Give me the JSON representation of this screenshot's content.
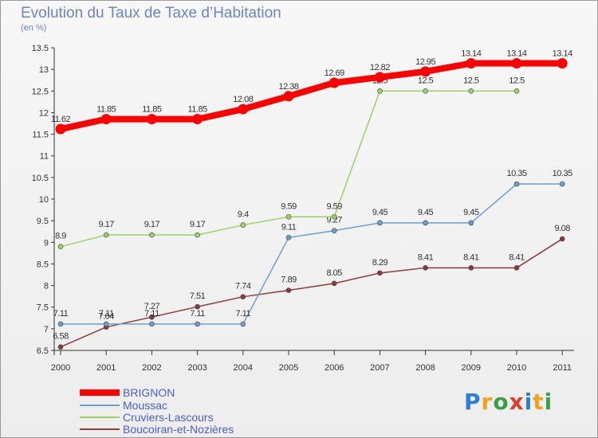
{
  "header": {
    "title": "Evolution du Taux de Taxe d’Habitation",
    "unit": "(en %)"
  },
  "logo": {
    "letters": [
      "P",
      "r",
      "o",
      "x",
      "i",
      "t",
      "i"
    ]
  },
  "chart_data": {
    "type": "line",
    "title": "Evolution du Taux de Taxe d’Habitation",
    "ylabel": "(en %)",
    "xlabel": "",
    "x": [
      "2000",
      "2001",
      "2002",
      "2003",
      "2004",
      "2005",
      "2006",
      "2007",
      "2008",
      "2009",
      "2010",
      "2011"
    ],
    "ylim": [
      6.5,
      13.5
    ],
    "yticks": [
      6.5,
      7,
      7.5,
      8,
      8.5,
      9,
      9.5,
      10,
      10.5,
      11,
      11.5,
      12,
      12.5,
      13,
      13.5
    ],
    "ytick_labels": [
      "6.5",
      "7",
      "7.5",
      "8",
      "8.5",
      "9",
      "9.5",
      "10",
      "10.5",
      "11",
      "11.5",
      "12",
      "12.5",
      "13",
      "13.5"
    ],
    "grid": false,
    "legend_position": "bottom-left",
    "series": [
      {
        "name": "BRIGNON",
        "color": "#ff0000",
        "values": [
          11.62,
          11.85,
          11.85,
          11.85,
          12.08,
          12.38,
          12.69,
          12.82,
          12.95,
          13.14,
          13.14,
          13.14
        ],
        "labels": [
          "11.62",
          "11.85",
          "11.85",
          "11.85",
          "12.08",
          "12.38",
          "12.69",
          "12.82",
          "12.95",
          "13.14",
          "13.14",
          "13.14"
        ]
      },
      {
        "name": "Moussac",
        "color": "#6ea0cf",
        "values": [
          7.11,
          7.11,
          7.11,
          7.11,
          7.11,
          9.11,
          9.27,
          9.45,
          9.45,
          9.45,
          10.35,
          10.35
        ],
        "labels": [
          "7.11",
          "7.11",
          "7.11",
          "7.11",
          "7.11",
          "9.11",
          "9.27",
          "9.45",
          "9.45",
          "9.45",
          "10.35",
          "10.35"
        ]
      },
      {
        "name": "Cruviers-Lascours",
        "color": "#9ad464",
        "values": [
          8.9,
          9.17,
          9.17,
          9.17,
          9.4,
          9.59,
          9.59,
          12.5,
          12.5,
          12.5,
          12.5,
          null
        ],
        "labels": [
          "8.9",
          "9.17",
          "9.17",
          "9.17",
          "9.4",
          "9.59",
          "9.59",
          "12.5",
          "12.5",
          "12.5",
          "12.5",
          ""
        ]
      },
      {
        "name": "Boucoiran-et-Nozières",
        "color": "#8b3a3a",
        "values": [
          6.58,
          7.04,
          7.27,
          7.51,
          7.74,
          7.89,
          8.05,
          8.29,
          8.41,
          8.41,
          8.41,
          9.08
        ],
        "labels": [
          "6.58",
          "7.04",
          "7.27",
          "7.51",
          "7.74",
          "7.89",
          "8.05",
          "8.29",
          "8.41",
          "8.41",
          "8.41",
          "9.08"
        ]
      }
    ]
  },
  "legend": {
    "items": [
      {
        "label": "BRIGNON",
        "color": "#ff0000"
      },
      {
        "label": "Moussac",
        "color": "#6ea0cf"
      },
      {
        "label": "Cruviers-Lascours",
        "color": "#9ad464"
      },
      {
        "label": "Boucoiran-et-Nozières",
        "color": "#8b3a3a"
      }
    ]
  }
}
